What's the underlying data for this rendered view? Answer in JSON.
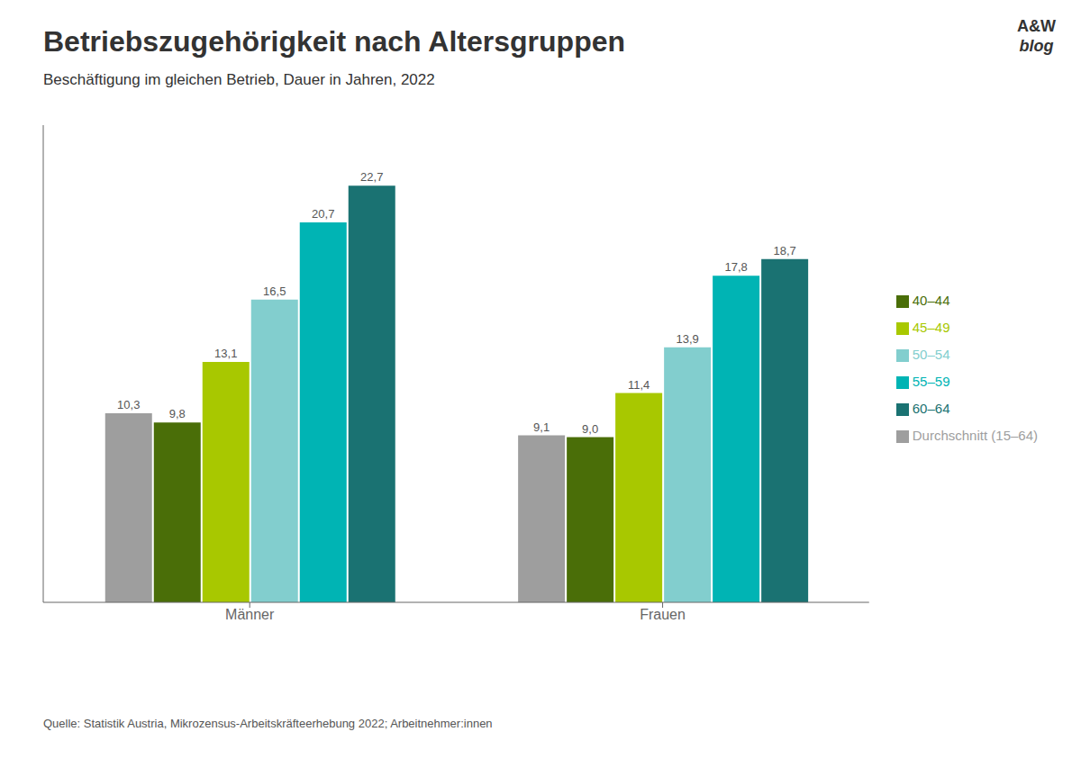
{
  "chart_data": {
    "type": "bar",
    "title": "Betriebszugehörigkeit nach Altersgruppen",
    "subtitle": "Beschäftigung im gleichen Betrieb, Dauer in Jahren, 2022",
    "annotations": [
      "A&W",
      "blog",
      "Quelle: Statistik Austria, Mikrozensus-Arbeitskräfteerhebung 2022; Arbeitnehmer:innen"
    ],
    "categories": [
      "Männer",
      "Frauen"
    ],
    "series": [
      {
        "name": "Durchschnitt (15–64)",
        "color": "#9e9e9e",
        "values": [
          10.3,
          9.1
        ],
        "value_labels": [
          "10,3",
          "9,1"
        ]
      },
      {
        "name": "40–44",
        "color": "#4a6e08",
        "values": [
          9.8,
          9.0
        ],
        "value_labels": [
          "9,8",
          "9,0"
        ]
      },
      {
        "name": "45–49",
        "color": "#a8c800",
        "values": [
          13.1,
          11.4
        ],
        "value_labels": [
          "13,1",
          "11,4"
        ]
      },
      {
        "name": "50–54",
        "color": "#82cece",
        "values": [
          16.5,
          13.9
        ],
        "value_labels": [
          "16,5",
          "13,9"
        ]
      },
      {
        "name": "55–59",
        "color": "#00b4b4",
        "values": [
          20.7,
          17.8
        ],
        "value_labels": [
          "20,7",
          "17,8"
        ]
      },
      {
        "name": "60–64",
        "color": "#1a7272",
        "values": [
          22.7,
          18.7
        ],
        "value_labels": [
          "22,7",
          "18,7"
        ]
      }
    ],
    "ylim": [
      0,
      26
    ],
    "grid": false,
    "legend": "right",
    "data_labels": true,
    "tick_labels": "x"
  }
}
